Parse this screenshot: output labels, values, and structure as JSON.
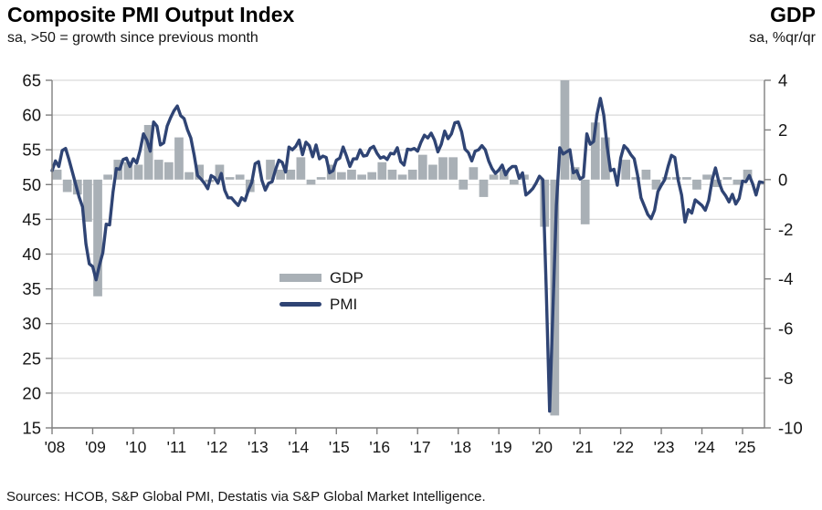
{
  "header": {
    "title": "Composite PMI Output Index",
    "subtitle": "sa, >50 = growth since previous month",
    "right_title": "GDP",
    "right_subtitle": "sa, %qr/qr"
  },
  "source": "Sources: HCOB, S&P Global PMI, Destatis via S&P Global Market Intelligence.",
  "colors": {
    "pmi_line": "#2f4474",
    "gdp_bar": "#a9b0b6",
    "gridline": "#d9d9d9",
    "axis": "#7f7f7f",
    "text": "#151515"
  },
  "chart_data": {
    "type": "combo",
    "title": "Composite PMI Output Index",
    "legend_position": "center-left inside plot",
    "grid": true,
    "x_axis": {
      "start_year": 2008,
      "tick_labels": [
        "'08",
        "'09",
        "'10",
        "'11",
        "'12",
        "'13",
        "'14",
        "'15",
        "'16",
        "'17",
        "'18",
        "'19",
        "'20",
        "'21",
        "'22",
        "'23",
        "'24",
        "'25"
      ]
    },
    "left_axis": {
      "label": "PMI index, sa, >50 = growth since previous month",
      "min": 15,
      "max": 65,
      "step": 5,
      "tick_labels": [
        "65",
        "60",
        "55",
        "50",
        "45",
        "40",
        "35",
        "30",
        "25",
        "20",
        "15"
      ]
    },
    "right_axis": {
      "label": "GDP, sa, %qr/qr",
      "min": -10,
      "max": 4,
      "step": 2,
      "tick_labels": [
        "4",
        "2",
        "0",
        "-2",
        "-4",
        "-6",
        "-8",
        "-10"
      ]
    },
    "series": [
      {
        "name": "GDP",
        "type": "bar",
        "axis": "right",
        "frequency": "quarterly",
        "start": "2008-Q1",
        "values": [
          0.4,
          -0.5,
          -0.6,
          -1.7,
          -4.7,
          0.2,
          0.8,
          0.7,
          0.6,
          2.2,
          0.8,
          0.7,
          1.7,
          0.3,
          0.6,
          -0.1,
          0.6,
          0.1,
          0.2,
          -0.5,
          0.0,
          0.8,
          0.4,
          0.4,
          0.9,
          -0.2,
          0.1,
          0.6,
          0.3,
          0.4,
          0.2,
          0.3,
          0.7,
          0.4,
          0.2,
          0.4,
          1.0,
          0.6,
          0.9,
          0.9,
          -0.4,
          0.5,
          -0.7,
          0.2,
          0.4,
          -0.2,
          0.2,
          0.0,
          -1.9,
          -9.5,
          8.7,
          0.5,
          -1.8,
          2.3,
          1.7,
          0.0,
          0.8,
          0.1,
          0.4,
          -0.4,
          0.1,
          0.1,
          0.1,
          -0.4,
          0.2,
          -0.3,
          0.1,
          -0.2,
          0.4
        ]
      },
      {
        "name": "PMI",
        "type": "line",
        "axis": "left",
        "frequency": "monthly",
        "start": "2008-01",
        "values": [
          52.0,
          53.4,
          52.6,
          54.9,
          55.2,
          53.6,
          51.8,
          50.0,
          48.2,
          46.8,
          41.5,
          38.6,
          38.2,
          36.3,
          38.4,
          40.2,
          44.3,
          44.2,
          48.9,
          52.3,
          52.2,
          53.6,
          53.8,
          52.6,
          53.7,
          53.1,
          54.9,
          57.3,
          56.4,
          54.8,
          59.0,
          58.4,
          55.7,
          56.0,
          58.4,
          59.6,
          60.6,
          61.3,
          59.9,
          59.5,
          57.9,
          56.7,
          54.2,
          51.3,
          50.8,
          50.2,
          49.4,
          51.3,
          51.0,
          50.2,
          51.6,
          49.2,
          48.1,
          48.1,
          47.5,
          47.0,
          48.1,
          47.7,
          49.2,
          50.3,
          53.0,
          53.3,
          50.6,
          49.2,
          50.2,
          50.4,
          52.1,
          53.5,
          53.2,
          51.8,
          55.4,
          55.0,
          55.5,
          56.4,
          54.3,
          56.1,
          55.6,
          54.0,
          55.7,
          53.7,
          54.1,
          53.9,
          51.7,
          52.0,
          53.5,
          53.8,
          55.4,
          54.1,
          52.6,
          53.7,
          53.7,
          55.0,
          54.1,
          54.2,
          55.2,
          55.5,
          54.5,
          53.8,
          54.0,
          53.6,
          54.5,
          54.4,
          55.3,
          53.3,
          52.8,
          55.1,
          55.0,
          55.2,
          54.8,
          56.1,
          57.1,
          56.7,
          57.4,
          56.4,
          54.7,
          55.8,
          57.7,
          56.6,
          57.3,
          58.9,
          59.0,
          57.6,
          55.1,
          54.6,
          53.4,
          54.8,
          55.0,
          55.6,
          55.0,
          53.4,
          52.3,
          51.6,
          52.1,
          52.8,
          51.4,
          52.2,
          52.6,
          52.6,
          50.9,
          51.7,
          48.5,
          48.9,
          49.4,
          50.2,
          51.2,
          50.7,
          35.0,
          17.4,
          32.3,
          47.0,
          55.3,
          54.4,
          54.7,
          55.0,
          51.7,
          52.0,
          50.8,
          51.1,
          57.3,
          55.8,
          56.2,
          60.1,
          62.4,
          60.0,
          55.5,
          52.0,
          52.2,
          49.9,
          53.8,
          55.6,
          55.1,
          54.3,
          53.7,
          51.3,
          48.1,
          46.9,
          45.7,
          45.1,
          46.3,
          49.0,
          49.9,
          50.7,
          52.6,
          54.2,
          53.9,
          50.6,
          48.5,
          44.6,
          46.4,
          45.9,
          47.8,
          47.4,
          47.0,
          46.3,
          47.7,
          50.6,
          52.4,
          50.4,
          49.1,
          48.4,
          47.5,
          48.6,
          47.2,
          48.0,
          50.5,
          50.4,
          51.3,
          50.1,
          48.5,
          50.4,
          50.3
        ]
      }
    ]
  }
}
